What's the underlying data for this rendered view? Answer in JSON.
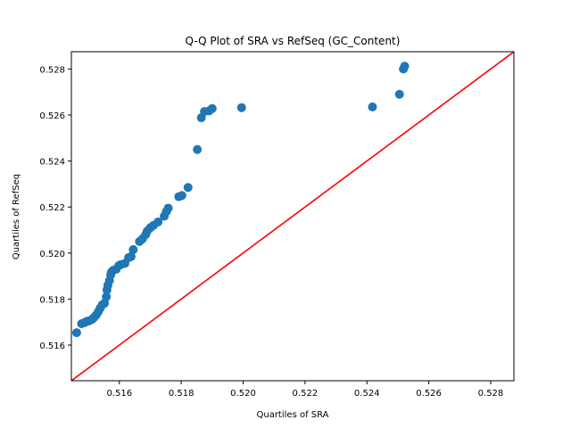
{
  "chart_data": {
    "type": "scatter",
    "title": "Q-Q Plot of SRA vs RefSeq (GC_Content)",
    "xlabel": "Quartiles of SRA",
    "ylabel": "Quartiles of RefSeq",
    "xlim": [
      0.51445,
      0.52875
    ],
    "ylim": [
      0.51445,
      0.52875
    ],
    "x_ticks": [
      "0.516",
      "0.518",
      "0.520",
      "0.522",
      "0.524",
      "0.526",
      "0.528"
    ],
    "y_ticks": [
      "0.516",
      "0.518",
      "0.520",
      "0.522",
      "0.524",
      "0.526",
      "0.528"
    ],
    "grid": false,
    "reference_line": {
      "from": [
        0.51445,
        0.51445
      ],
      "to": [
        0.52875,
        0.52875
      ],
      "color": "#ff0000"
    },
    "series": [
      {
        "color": "#1f77b4",
        "points": [
          [
            0.51462,
            0.51654
          ],
          [
            0.51478,
            0.51693
          ],
          [
            0.51488,
            0.51698
          ],
          [
            0.51495,
            0.51703
          ],
          [
            0.51502,
            0.51705
          ],
          [
            0.51512,
            0.51712
          ],
          [
            0.51518,
            0.5172
          ],
          [
            0.51525,
            0.5173
          ],
          [
            0.51532,
            0.51745
          ],
          [
            0.51538,
            0.5176
          ],
          [
            0.51545,
            0.51775
          ],
          [
            0.51552,
            0.51782
          ],
          [
            0.51558,
            0.5181
          ],
          [
            0.5156,
            0.5184
          ],
          [
            0.51563,
            0.5186
          ],
          [
            0.51568,
            0.5188
          ],
          [
            0.51572,
            0.51905
          ],
          [
            0.51575,
            0.51918
          ],
          [
            0.5158,
            0.51925
          ],
          [
            0.5159,
            0.5193
          ],
          [
            0.51598,
            0.51945
          ],
          [
            0.51605,
            0.5195
          ],
          [
            0.51618,
            0.51955
          ],
          [
            0.5163,
            0.5198
          ],
          [
            0.51638,
            0.51985
          ],
          [
            0.51645,
            0.52015
          ],
          [
            0.51665,
            0.5205
          ],
          [
            0.51675,
            0.52062
          ],
          [
            0.51685,
            0.5208
          ],
          [
            0.5169,
            0.52095
          ],
          [
            0.517,
            0.5211
          ],
          [
            0.5171,
            0.5212
          ],
          [
            0.51725,
            0.52135
          ],
          [
            0.51745,
            0.5216
          ],
          [
            0.51752,
            0.5218
          ],
          [
            0.51758,
            0.52195
          ],
          [
            0.51792,
            0.52245
          ],
          [
            0.51802,
            0.5225
          ],
          [
            0.51822,
            0.52285
          ],
          [
            0.51852,
            0.5245
          ],
          [
            0.51865,
            0.52588
          ],
          [
            0.51875,
            0.52615
          ],
          [
            0.5189,
            0.52618
          ],
          [
            0.519,
            0.52628
          ],
          [
            0.51995,
            0.52632
          ],
          [
            0.52418,
            0.52635
          ],
          [
            0.52505,
            0.5269
          ],
          [
            0.52518,
            0.528
          ],
          [
            0.52522,
            0.52812
          ]
        ]
      }
    ]
  }
}
